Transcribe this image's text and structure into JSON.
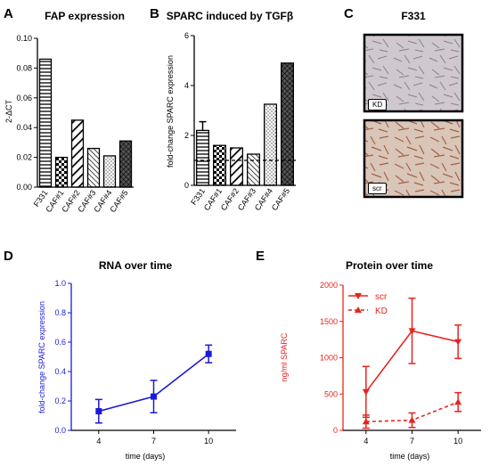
{
  "colors": {
    "black": "#000000",
    "blue": "#1a1ad6",
    "red": "#e8231f"
  },
  "chart_data": [
    {
      "panel": "A",
      "type": "bar",
      "title": "FAP expression",
      "ylabel": "2-ΔCT",
      "ylim": [
        0,
        0.1
      ],
      "yticks": [
        "0.00",
        "0.02",
        "0.04",
        "0.06",
        "0.08",
        "0.10"
      ],
      "categories": [
        "F331",
        "CAF#1",
        "CAF#2",
        "CAF#3",
        "CAF#4",
        "CAF#5"
      ],
      "values": [
        0.086,
        0.02,
        0.045,
        0.026,
        0.021,
        0.031
      ],
      "patterns": [
        "hlines",
        "checker",
        "diag",
        "hatch",
        "dots",
        "crosshatch"
      ]
    },
    {
      "panel": "B",
      "type": "bar",
      "title": "SPARC induced by TGFβ",
      "ylabel": "fold-change SPARC expression",
      "ylim": [
        0,
        6
      ],
      "yticks": [
        "0",
        "2",
        "4",
        "6"
      ],
      "categories": [
        "F331",
        "CAF#1",
        "CAF#2",
        "CAF#3",
        "CAF#4",
        "CAF#5"
      ],
      "values": [
        2.2,
        1.6,
        1.5,
        1.25,
        3.25,
        4.9
      ],
      "errors": [
        0.35,
        0,
        0,
        0,
        0,
        0
      ],
      "reference_line": 1,
      "patterns": [
        "hlines",
        "checker",
        "diag",
        "hatch",
        "dots",
        "crosshatch"
      ]
    },
    {
      "panel": "D",
      "type": "line",
      "title": "RNA over time",
      "xlabel": "time (days)",
      "ylabel": "fold-change SPARC expression",
      "ylim": [
        0,
        1.0
      ],
      "yticks": [
        "0.0",
        "0.2",
        "0.4",
        "0.6",
        "0.8",
        "1.0"
      ],
      "x": [
        4,
        7,
        10
      ],
      "xticks": [
        "4",
        "7",
        "10"
      ],
      "series": [
        {
          "values": [
            0.13,
            0.23,
            0.52
          ],
          "errors": [
            0.08,
            0.11,
            0.06
          ]
        }
      ]
    },
    {
      "panel": "E",
      "type": "line",
      "title": "Protein over time",
      "xlabel": "time (days)",
      "ylabel": "ng/ml SPARC",
      "ylim": [
        0,
        2000
      ],
      "yticks": [
        "0",
        "500",
        "1000",
        "1500",
        "2000"
      ],
      "x": [
        4,
        7,
        10
      ],
      "xticks": [
        "4",
        "7",
        "10"
      ],
      "legend": "top-left",
      "series": [
        {
          "name": "scr",
          "values": [
            530,
            1370,
            1220
          ],
          "errors": [
            350,
            450,
            230
          ],
          "marker": "triangle-down",
          "style": "solid"
        },
        {
          "name": "KD",
          "values": [
            120,
            140,
            390
          ],
          "errors": [
            90,
            100,
            130
          ],
          "marker": "triangle-up",
          "style": "dashed"
        }
      ]
    }
  ],
  "panel_c": {
    "letter": "C",
    "title": "F331",
    "images": [
      {
        "label": "KD"
      },
      {
        "label": "scr"
      }
    ]
  },
  "panel_letters": {
    "a": "A",
    "b": "B",
    "d": "D",
    "e": "E"
  }
}
